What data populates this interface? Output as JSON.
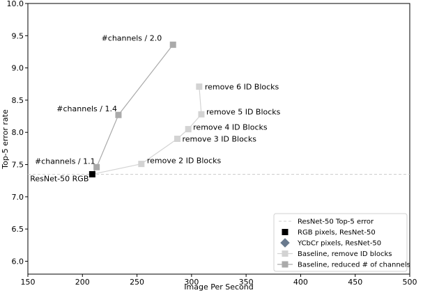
{
  "chart_data": {
    "type": "scatter",
    "xlabel": "Image Per Second",
    "ylabel": "Top-5 error rate",
    "xlim": [
      150,
      500
    ],
    "ylim": [
      5.8,
      10.0
    ],
    "xticks": [
      "150",
      "200",
      "250",
      "300",
      "350",
      "400",
      "450",
      "500"
    ],
    "yticks": [
      "6.0",
      "6.5",
      "7.0",
      "7.5",
      "8.0",
      "8.5",
      "9.0",
      "9.5",
      "10.0"
    ],
    "grid": false,
    "legend_position": "bottom-right",
    "reference_line": {
      "name": "ResNet-50 Top-5 error",
      "y": 7.35,
      "color": "#cccccc"
    },
    "series": [
      {
        "name": "RGB pixels, ResNet-50",
        "marker": "square",
        "color": "#000000",
        "points": [
          {
            "x": 209,
            "y": 7.35,
            "label": "ResNet-50 RGB"
          }
        ]
      },
      {
        "name": "YCbCr pixels, ResNet-50",
        "marker": "diamond",
        "color": "#6a7a8e",
        "points": []
      },
      {
        "name": "Baseline, remove ID blocks",
        "marker": "square",
        "color": "#d3d3d3",
        "line": true,
        "points": [
          {
            "x": 209,
            "y": 7.35,
            "label": ""
          },
          {
            "x": 254,
            "y": 7.51,
            "label": "remove 2 ID Blocks"
          },
          {
            "x": 287,
            "y": 7.9,
            "label": "remove 3 ID Blocks"
          },
          {
            "x": 297,
            "y": 8.05,
            "label": "remove 4 ID Blocks"
          },
          {
            "x": 309,
            "y": 8.28,
            "label": "remove 5 ID Blocks"
          },
          {
            "x": 307,
            "y": 8.71,
            "label": "remove 6 ID Blocks"
          }
        ]
      },
      {
        "name": "Baseline, reduced # of channels",
        "marker": "square",
        "color": "#aaaaaa",
        "line": true,
        "points": [
          {
            "x": 209,
            "y": 7.35,
            "label": ""
          },
          {
            "x": 213,
            "y": 7.46,
            "label": "#channels / 1.1"
          },
          {
            "x": 233,
            "y": 8.27,
            "label": "#channels / 1.4"
          },
          {
            "x": 283,
            "y": 9.36,
            "label": "#channels / 2.0"
          }
        ]
      }
    ]
  }
}
